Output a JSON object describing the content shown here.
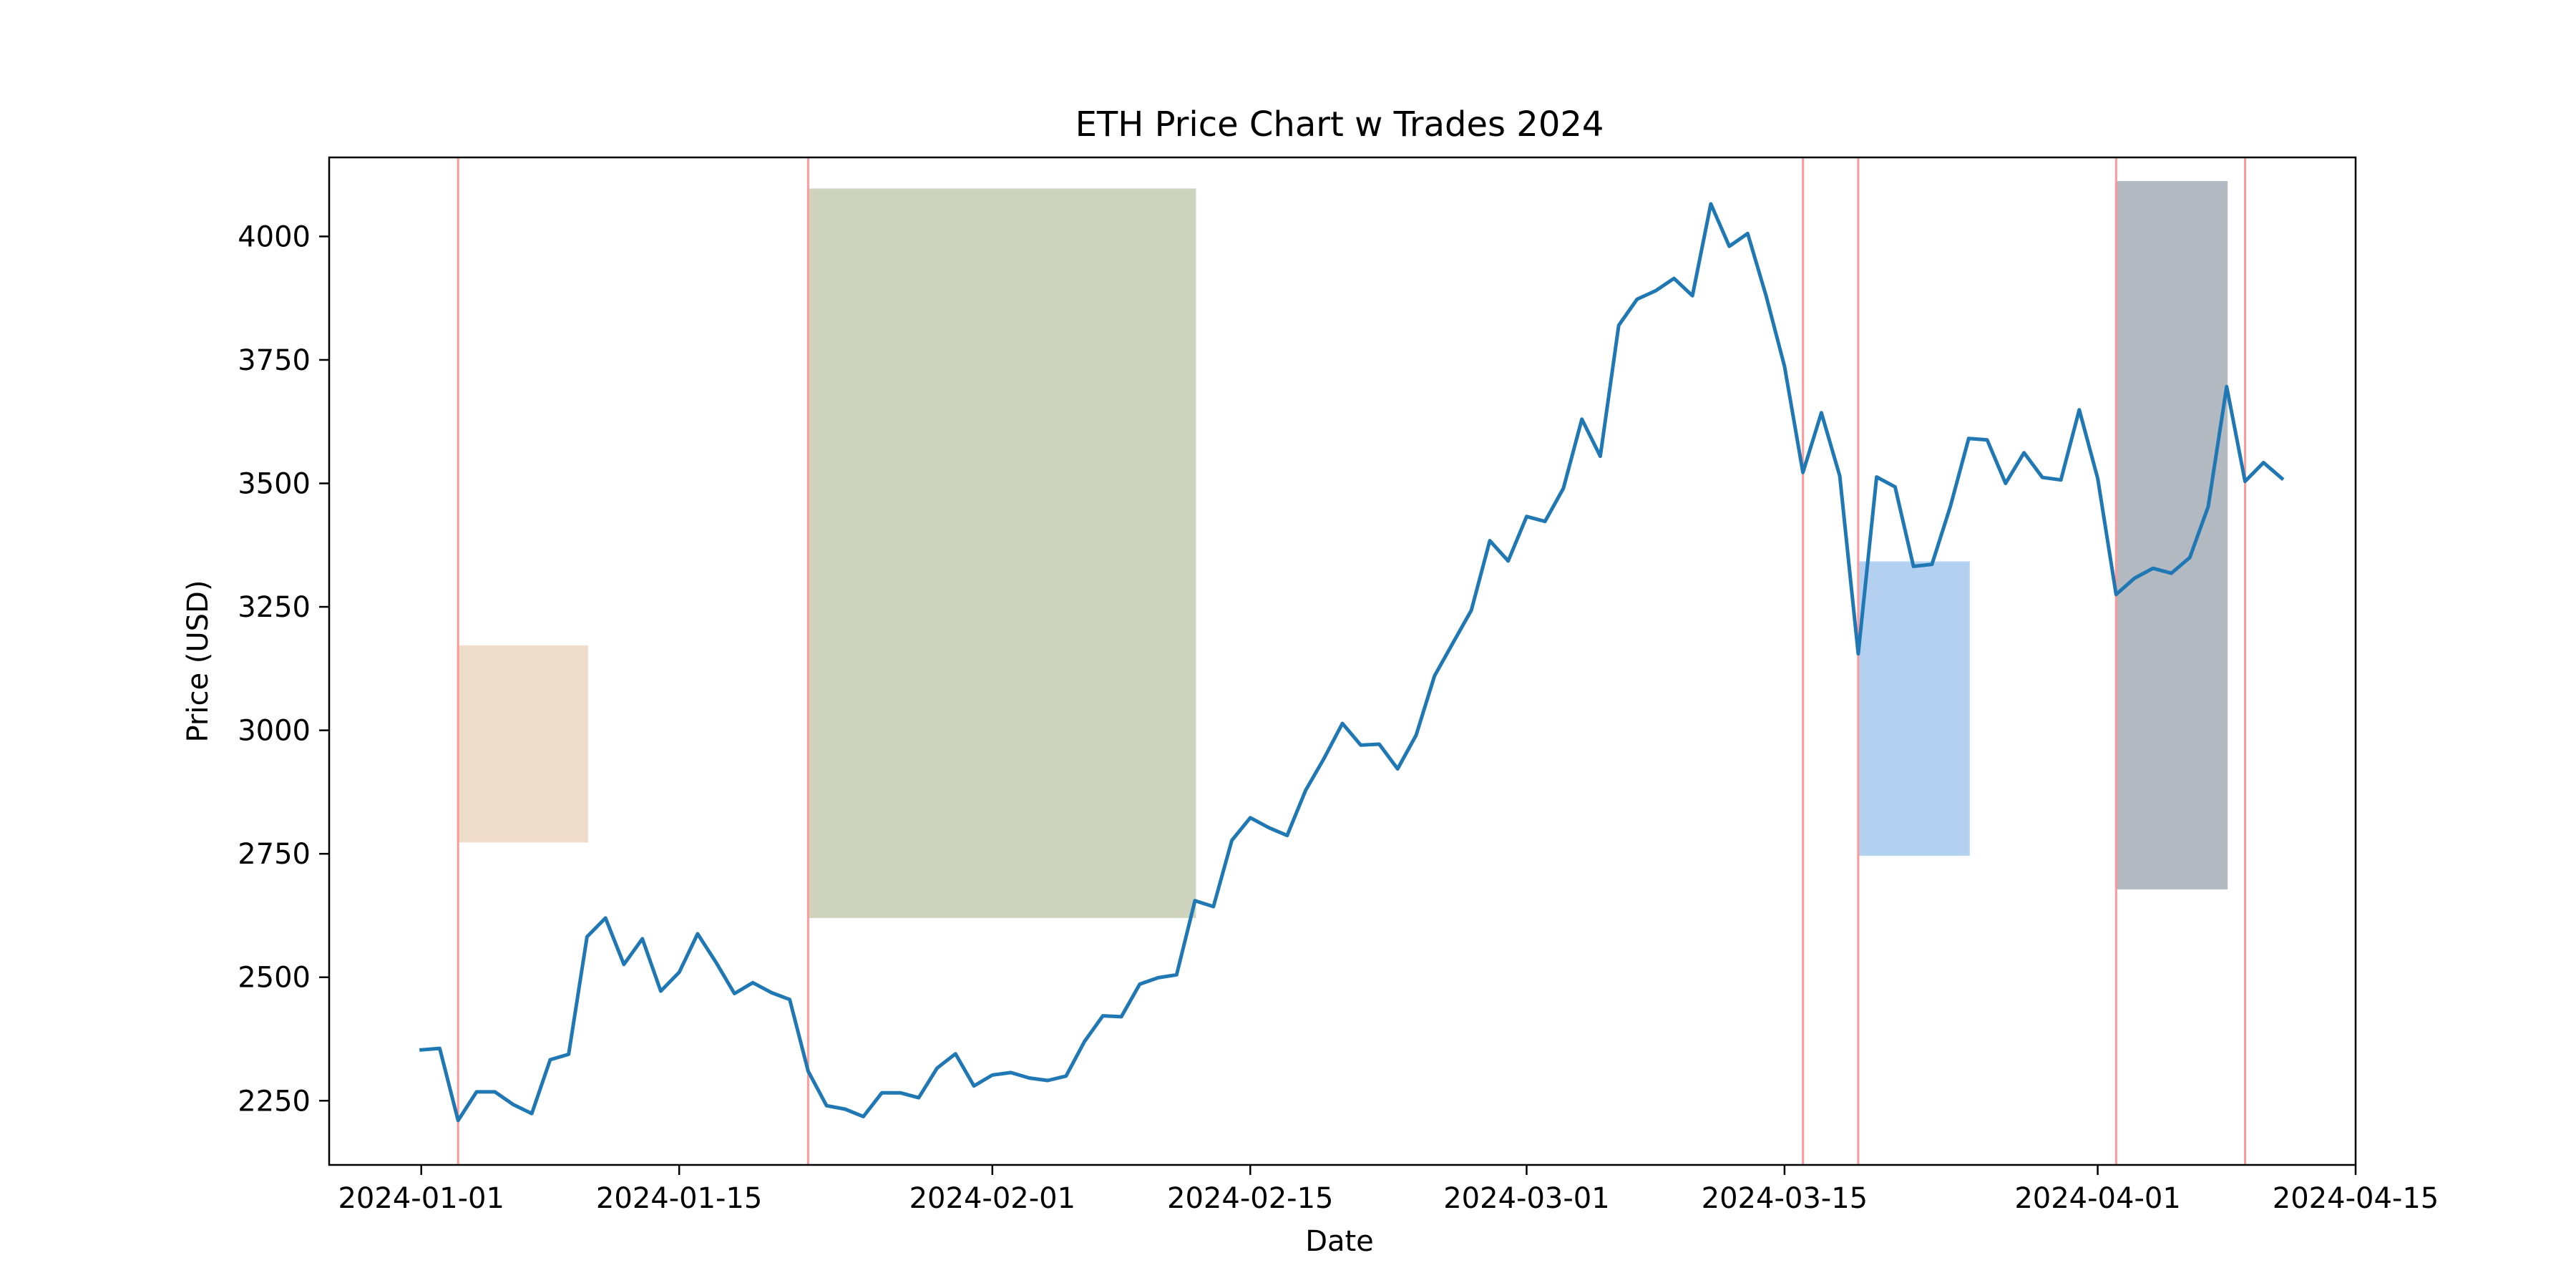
{
  "chart_data": {
    "type": "line",
    "title": "ETH Price Chart w Trades 2024",
    "xlabel": "Date",
    "ylabel": "Price (USD)",
    "x_range": [
      "2023-12-27",
      "2024-04-15"
    ],
    "ylim": [
      2120,
      4160
    ],
    "x_ticks": [
      "2024-01-01",
      "2024-01-15",
      "2024-02-01",
      "2024-02-15",
      "2024-03-01",
      "2024-03-15",
      "2024-04-01",
      "2024-04-15"
    ],
    "y_ticks": [
      2250,
      2500,
      2750,
      3000,
      3250,
      3500,
      3750,
      4000
    ],
    "grid": false,
    "legend": "none",
    "series": [
      {
        "color": "#1f77b4",
        "x": [
          "2024-01-01",
          "2024-01-02",
          "2024-01-03",
          "2024-01-04",
          "2024-01-05",
          "2024-01-06",
          "2024-01-07",
          "2024-01-08",
          "2024-01-09",
          "2024-01-10",
          "2024-01-11",
          "2024-01-12",
          "2024-01-13",
          "2024-01-14",
          "2024-01-15",
          "2024-01-16",
          "2024-01-17",
          "2024-01-18",
          "2024-01-19",
          "2024-01-20",
          "2024-01-21",
          "2024-01-22",
          "2024-01-23",
          "2024-01-24",
          "2024-01-25",
          "2024-01-26",
          "2024-01-27",
          "2024-01-28",
          "2024-01-29",
          "2024-01-30",
          "2024-01-31",
          "2024-02-01",
          "2024-02-02",
          "2024-02-03",
          "2024-02-04",
          "2024-02-05",
          "2024-02-06",
          "2024-02-07",
          "2024-02-08",
          "2024-02-09",
          "2024-02-10",
          "2024-02-11",
          "2024-02-12",
          "2024-02-13",
          "2024-02-14",
          "2024-02-15",
          "2024-02-16",
          "2024-02-17",
          "2024-02-18",
          "2024-02-19",
          "2024-02-20",
          "2024-02-21",
          "2024-02-22",
          "2024-02-23",
          "2024-02-24",
          "2024-02-25",
          "2024-02-26",
          "2024-02-27",
          "2024-02-28",
          "2024-02-29",
          "2024-03-01",
          "2024-03-02",
          "2024-03-03",
          "2024-03-04",
          "2024-03-05",
          "2024-03-06",
          "2024-03-07",
          "2024-03-08",
          "2024-03-09",
          "2024-03-10",
          "2024-03-11",
          "2024-03-12",
          "2024-03-13",
          "2024-03-14",
          "2024-03-15",
          "2024-03-16",
          "2024-03-17",
          "2024-03-18",
          "2024-03-19",
          "2024-03-20",
          "2024-03-21",
          "2024-03-22",
          "2024-03-23",
          "2024-03-24",
          "2024-03-25",
          "2024-03-26",
          "2024-03-27",
          "2024-03-28",
          "2024-03-29",
          "2024-03-30",
          "2024-03-31",
          "2024-04-01",
          "2024-04-02",
          "2024-04-03",
          "2024-04-04",
          "2024-04-05",
          "2024-04-06",
          "2024-04-07",
          "2024-04-08",
          "2024-04-09",
          "2024-04-10",
          "2024-04-11"
        ],
        "values": [
          2353,
          2356,
          2210,
          2268,
          2268,
          2242,
          2224,
          2333,
          2344,
          2582,
          2620,
          2526,
          2578,
          2472,
          2510,
          2588,
          2530,
          2467,
          2489,
          2469,
          2455,
          2310,
          2240,
          2233,
          2218,
          2266,
          2266,
          2256,
          2316,
          2345,
          2280,
          2302,
          2307,
          2296,
          2291,
          2300,
          2370,
          2422,
          2420,
          2486,
          2499,
          2505,
          2655,
          2643,
          2777,
          2823,
          2803,
          2787,
          2878,
          2943,
          3014,
          2970,
          2972,
          2922,
          2990,
          3110,
          3177,
          3243,
          3384,
          3343,
          3433,
          3423,
          3490,
          3630,
          3555,
          3820,
          3873,
          3890,
          3915,
          3880,
          4066,
          3980,
          4006,
          3880,
          3737,
          3522,
          3643,
          3515,
          3155,
          3513,
          3493,
          3332,
          3336,
          3453,
          3591,
          3588,
          3500,
          3562,
          3512,
          3507,
          3649,
          3510,
          3275,
          3308,
          3328,
          3318,
          3350,
          3453,
          3696,
          3504,
          3542,
          3510
        ]
      }
    ],
    "trade_marker_dates": [
      "2024-01-03",
      "2024-01-22",
      "2024-03-16",
      "2024-03-19",
      "2024-04-02",
      "2024-04-09"
    ],
    "trade_marker_color": "#ff9999",
    "trade_zones": [
      {
        "start": "2024-01-03",
        "end": "2024-01-10",
        "low": 2775,
        "high": 3170,
        "color": "#eedccb"
      },
      {
        "start": "2024-01-22",
        "end": "2024-02-12",
        "low": 2622,
        "high": 4095,
        "color": "#cdd3bd"
      },
      {
        "start": "2024-03-19",
        "end": "2024-03-25",
        "low": 2748,
        "high": 3340,
        "color": "#b3d0f1"
      },
      {
        "start": "2024-04-02",
        "end": "2024-04-08",
        "low": 2680,
        "high": 4110,
        "color": "#b3b9c1"
      }
    ]
  }
}
